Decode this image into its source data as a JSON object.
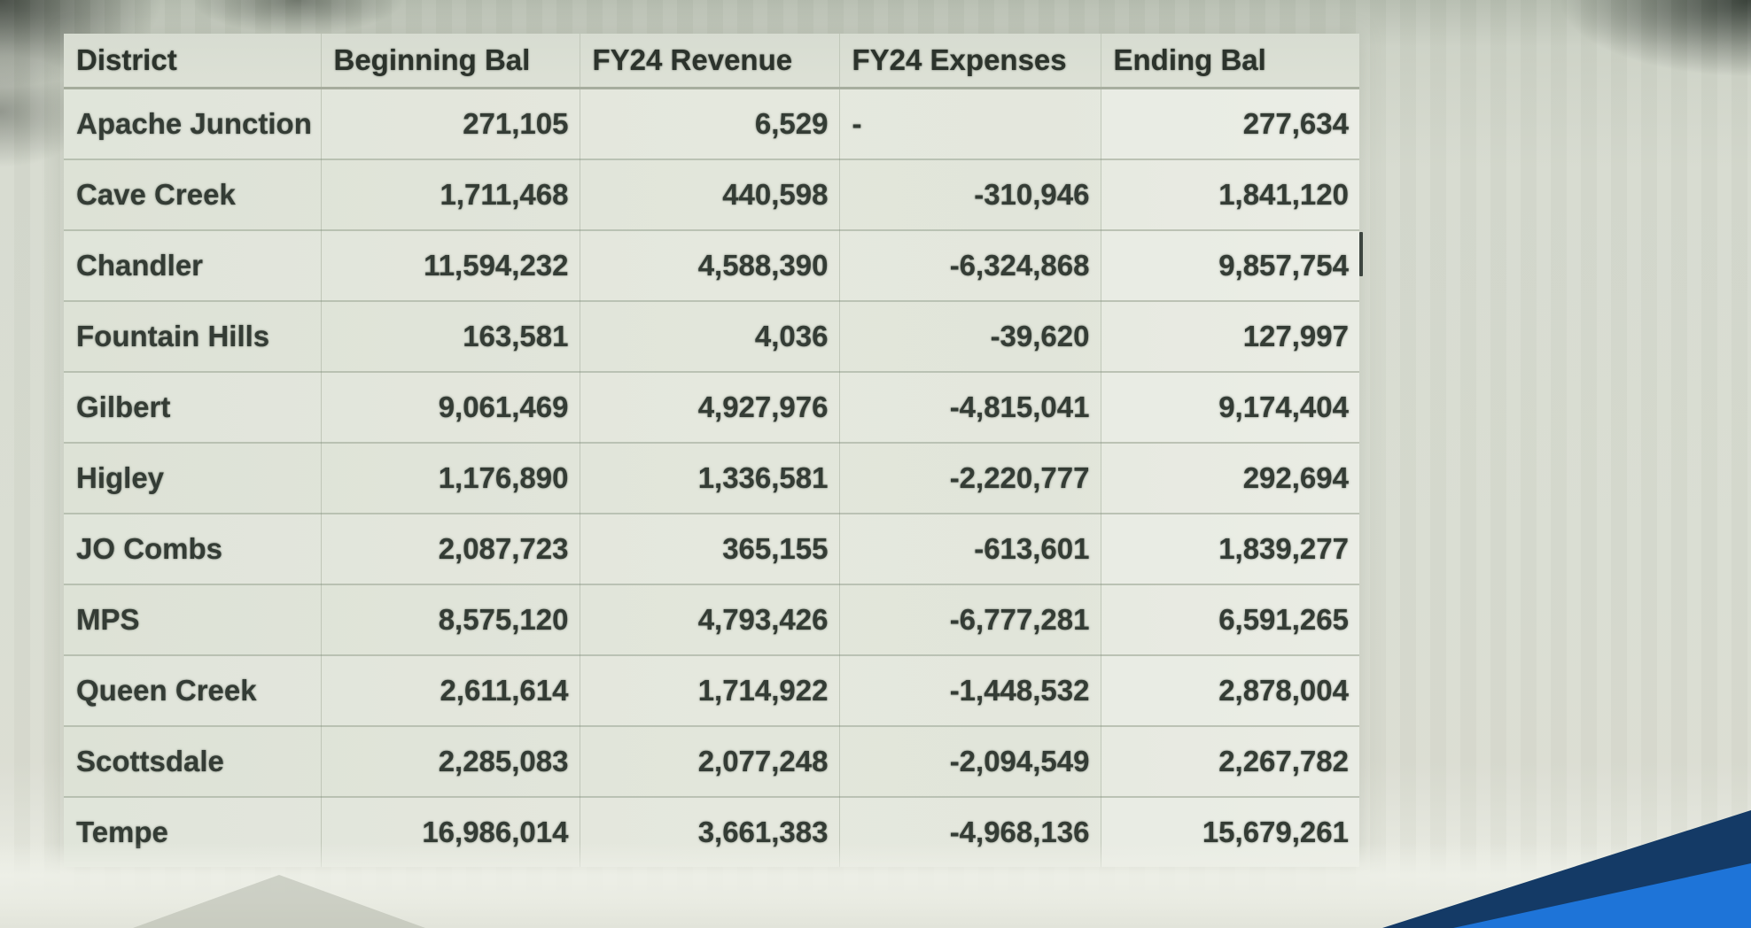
{
  "decor": {
    "ribbon_blue": "#1e74d8",
    "ribbon_navy": "#143a66",
    "cursor_color": "#3d4540"
  },
  "chart_data": {
    "type": "table",
    "title": "",
    "columns": [
      "District",
      "Beginning Bal",
      "FY24 Revenue",
      "FY24 Expenses",
      "Ending Bal"
    ],
    "rows": [
      [
        "Apache Junction",
        "271,105",
        "6,529",
        "-",
        "277,634"
      ],
      [
        "Cave Creek",
        "1,711,468",
        "440,598",
        "-310,946",
        "1,841,120"
      ],
      [
        "Chandler",
        "11,594,232",
        "4,588,390",
        "-6,324,868",
        "9,857,754"
      ],
      [
        "Fountain Hills",
        "163,581",
        "4,036",
        "-39,620",
        "127,997"
      ],
      [
        "Gilbert",
        "9,061,469",
        "4,927,976",
        "-4,815,041",
        "9,174,404"
      ],
      [
        "Higley",
        "1,176,890",
        "1,336,581",
        "-2,220,777",
        "292,694"
      ],
      [
        "JO Combs",
        "2,087,723",
        "365,155",
        "-613,601",
        "1,839,277"
      ],
      [
        "MPS",
        "8,575,120",
        "4,793,426",
        "-6,777,281",
        "6,591,265"
      ],
      [
        "Queen Creek",
        "2,611,614",
        "1,714,922",
        "-1,448,532",
        "2,878,004"
      ],
      [
        "Scottsdale",
        "2,285,083",
        "2,077,248",
        "-2,094,549",
        "2,267,782"
      ],
      [
        "Tempe",
        "16,986,014",
        "3,661,383",
        "-4,968,136",
        "15,679,261"
      ]
    ]
  }
}
